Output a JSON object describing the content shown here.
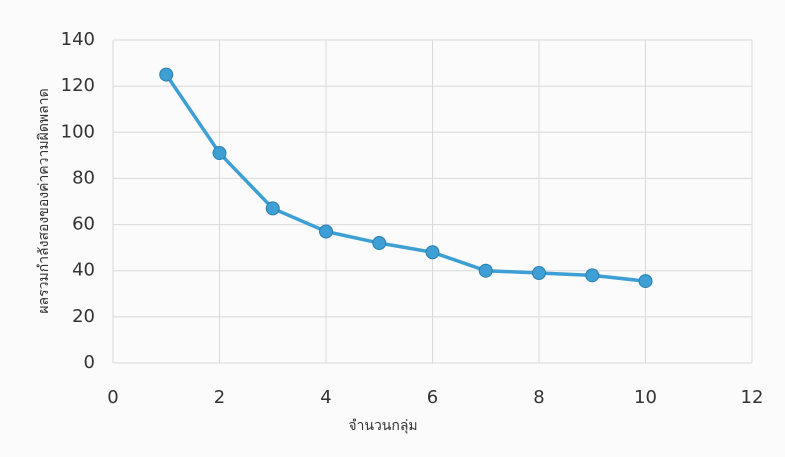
{
  "chart_data": {
    "type": "line",
    "x_label": "จำนวนกลุ่ม",
    "y_label": "ผลรวมกำลังสองของค่าความผิดพลาด",
    "x": [
      1,
      2,
      3,
      4,
      5,
      6,
      7,
      8,
      9,
      10
    ],
    "values": [
      125,
      91,
      67,
      57,
      52,
      48,
      40,
      39,
      38,
      35.5
    ],
    "color": "#3d9fd3",
    "xlim": [
      0,
      12
    ],
    "xticks": [
      0,
      2,
      4,
      6,
      8,
      10,
      12
    ],
    "ylim": [
      0,
      140
    ],
    "yticks": [
      0,
      20,
      40,
      60,
      80,
      100,
      120,
      140
    ],
    "grid": true
  }
}
